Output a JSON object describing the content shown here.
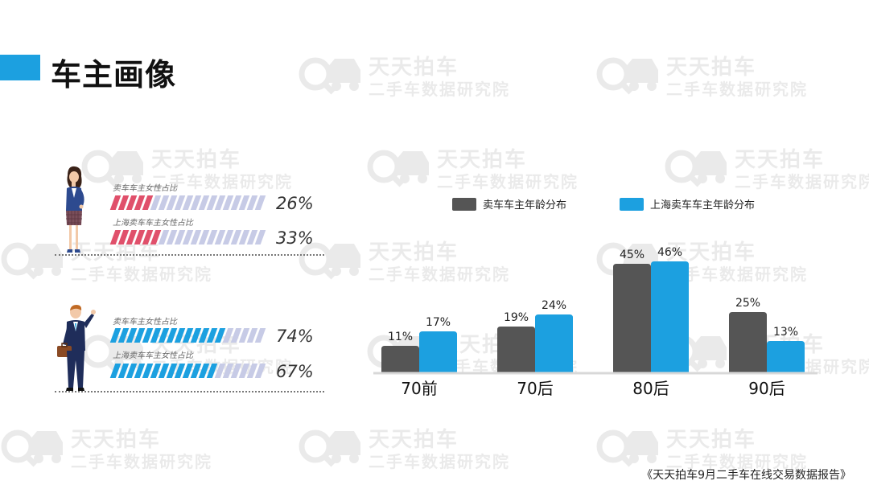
{
  "page": {
    "title": "车主画像",
    "footer_note": "《天天拍车9月二手车在线交易数据报告》"
  },
  "watermark": {
    "line1": "天天拍车",
    "line2": "二手车数据研究院"
  },
  "gender": {
    "female": {
      "icon": "businesswoman-icon",
      "bars": [
        {
          "label": "卖车车主女性占比",
          "value": 26,
          "pct_text": "26%"
        },
        {
          "label": "上海卖车车主女性占比",
          "value": 33,
          "pct_text": "33%"
        }
      ],
      "color": "#e0506b",
      "bg": "#c7cbe6"
    },
    "male": {
      "icon": "businessman-icon",
      "bars": [
        {
          "label": "卖车车主女性占比",
          "value": 74,
          "pct_text": "74%"
        },
        {
          "label": "上海卖车车主女性占比",
          "value": 67,
          "pct_text": "67%"
        }
      ],
      "color": "#1ca0e0",
      "bg": "#c7cbe6"
    }
  },
  "chart_data": {
    "type": "bar",
    "categories": [
      "70前",
      "70后",
      "80后",
      "90后"
    ],
    "series": [
      {
        "name": "卖车车主年龄分布",
        "values": [
          11,
          19,
          45,
          25
        ],
        "labels": [
          "11%",
          "19%",
          "45%",
          "25%"
        ],
        "color": "#555555"
      },
      {
        "name": "上海卖车车主年龄分布",
        "values": [
          17,
          24,
          46,
          13
        ],
        "labels": [
          "17%",
          "24%",
          "46%",
          "13%"
        ],
        "color": "#1ca0e0"
      }
    ],
    "title": "",
    "xlabel": "",
    "ylabel": "",
    "ylim": [
      0,
      50
    ],
    "grid": false,
    "legend_position": "top"
  }
}
